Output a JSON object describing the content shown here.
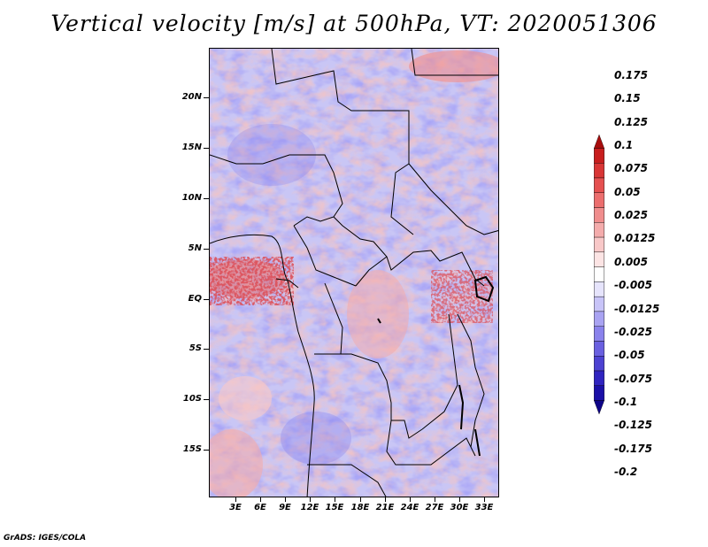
{
  "title": "Vertical velocity [m/s] at 500hPa, VT: 2020051306",
  "credit": "GrADS: IGES/COLA",
  "y_axis_labels": [
    "20N",
    "15N",
    "10N",
    "5N",
    "EQ",
    "5S",
    "10S",
    "15S"
  ],
  "x_axis_labels": [
    "3E",
    "6E",
    "9E",
    "12E",
    "15E",
    "18E",
    "21E",
    "24E",
    "27E",
    "30E",
    "33E"
  ],
  "colorbar": {
    "labels": [
      "0.175",
      "0.15",
      "0.125",
      "0.1",
      "0.075",
      "0.05",
      "0.025",
      "0.0125",
      "0.005",
      "-0.005",
      "-0.0125",
      "-0.025",
      "-0.05",
      "-0.075",
      "-0.1",
      "-0.125",
      "-0.175",
      "-0.2"
    ],
    "colors": [
      "#a80d0d",
      "#c81e1e",
      "#d93636",
      "#e55050",
      "#ec6e6e",
      "#f08d8d",
      "#f4acac",
      "#f8c8c8",
      "#fce4e4",
      "#ffffff",
      "#e6e4fc",
      "#c8c4f8",
      "#a9a3f2",
      "#8a82ec",
      "#6a60e0",
      "#4d42d2",
      "#3024c0",
      "#1b10a8",
      "#0e0488"
    ]
  }
}
